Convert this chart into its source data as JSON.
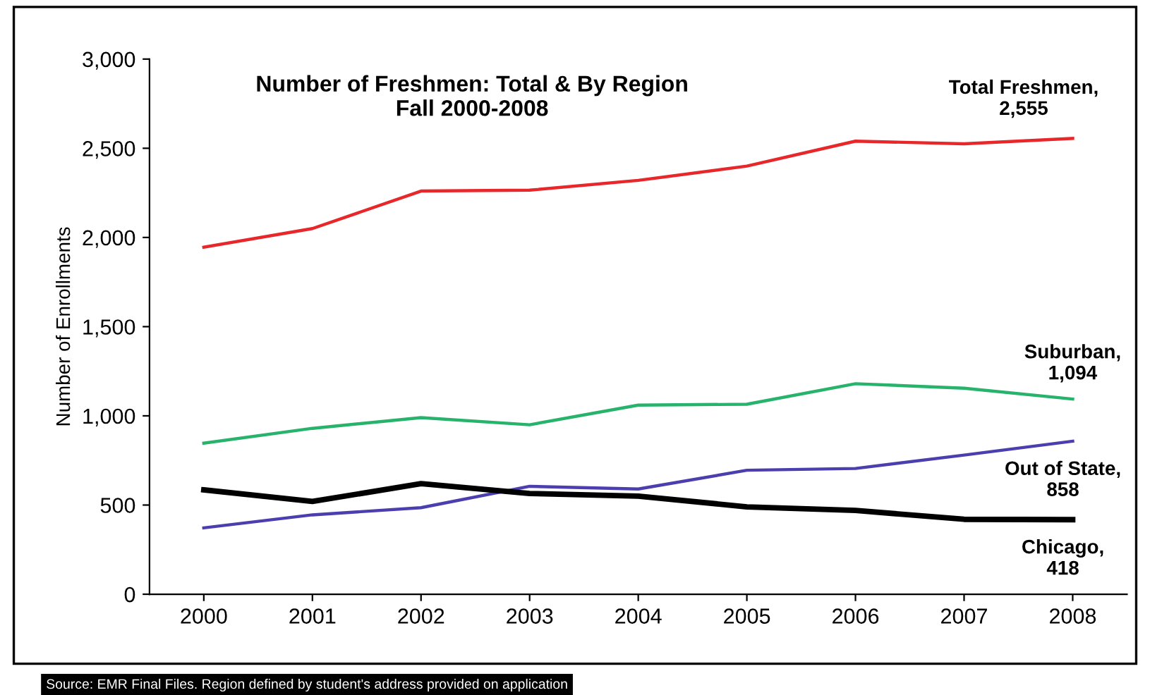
{
  "chart_data": {
    "type": "line",
    "title": "Number of Freshmen: Total & By Region\nFall 2000-2008",
    "ylabel": "Number of Enrollments",
    "categories": [
      "2000",
      "2001",
      "2002",
      "2003",
      "2004",
      "2005",
      "2006",
      "2007",
      "2008"
    ],
    "series": [
      {
        "name": "Total Freshmen,",
        "color": "#e8272a",
        "values": [
          1945,
          2050,
          2260,
          2265,
          2320,
          2400,
          2540,
          2525,
          2555
        ],
        "value_labels": [
          null,
          null,
          null,
          null,
          null,
          null,
          null,
          null,
          "2,555"
        ]
      },
      {
        "name": "Suburban,",
        "color": "#27b36b",
        "values": [
          847,
          930,
          990,
          950,
          1060,
          1065,
          1180,
          1155,
          1094
        ],
        "value_labels": [
          null,
          null,
          null,
          null,
          null,
          null,
          null,
          null,
          "1,094"
        ]
      },
      {
        "name": "Out of State,",
        "color": "#4b3fb0",
        "values": [
          372,
          445,
          485,
          605,
          590,
          695,
          705,
          780,
          858
        ],
        "value_labels": [
          null,
          null,
          null,
          null,
          null,
          null,
          null,
          null,
          "858"
        ]
      },
      {
        "name": "Chicago,",
        "color": "#000000",
        "values": [
          585,
          520,
          620,
          565,
          550,
          490,
          470,
          420,
          418
        ],
        "value_labels": [
          null,
          null,
          null,
          null,
          null,
          null,
          null,
          null,
          "418"
        ]
      }
    ],
    "annotations": [
      "Source: EMR Final Files. Region defined by student's address provided on application"
    ],
    "ylim": [
      0,
      3000
    ],
    "yticks": [
      {
        "value": 0,
        "label": "0"
      },
      {
        "value": 500,
        "label": "500"
      },
      {
        "value": 1000,
        "label": "1,000"
      },
      {
        "value": 1500,
        "label": "1,500"
      },
      {
        "value": 2000,
        "label": "2,000"
      },
      {
        "value": 2500,
        "label": "2,500"
      },
      {
        "value": 3000,
        "label": "3,000"
      }
    ],
    "grid": false,
    "legend": false
  }
}
